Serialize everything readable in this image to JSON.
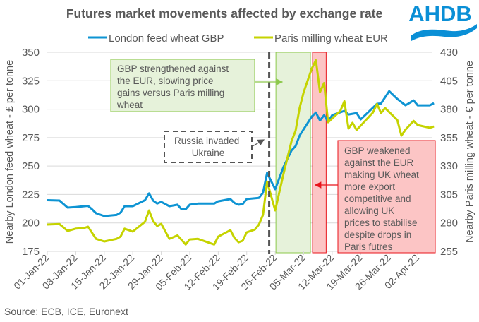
{
  "logo": {
    "text": "AHDB",
    "color": "#0a8fd6"
  },
  "source": "Source: ECB, ICE, Euronext",
  "chart_data": {
    "type": "line",
    "title": "Futures market movements affected by exchange rate",
    "ylabel_left": "Nearby London feed wheat - £ per tonne",
    "ylabel_right": "Nearby Paris milling wheat - € per tonne",
    "ylim_left": [
      175,
      350
    ],
    "ylim_right": [
      255,
      430
    ],
    "yticks_left": [
      175,
      200,
      225,
      250,
      275,
      300,
      325,
      350
    ],
    "yticks_right": [
      255,
      280,
      305,
      330,
      355,
      380,
      405,
      430
    ],
    "xlim": [
      "2022-01-01",
      "2022-04-07"
    ],
    "xticks": [
      "01-Jan-22",
      "08-Jan-22",
      "15-Jan-22",
      "22-Jan-22",
      "29-Jan-22",
      "05-Feb-22",
      "12-Feb-22",
      "19-Feb-22",
      "26-Feb-22",
      "05-Mar-22",
      "12-Mar-22",
      "19-Mar-22",
      "26-Mar-22",
      "02-Apr-22"
    ],
    "grid": true,
    "legend": "top",
    "series": [
      {
        "name": "London feed wheat GBP",
        "axis": "left",
        "color": "#0e94d3",
        "points": [
          [
            "2022-01-01",
            220
          ],
          [
            "2022-01-04",
            219.7
          ],
          [
            "2022-01-06",
            213.5
          ],
          [
            "2022-01-08",
            214
          ],
          [
            "2022-01-11",
            215
          ],
          [
            "2022-01-12",
            212
          ],
          [
            "2022-01-13",
            208.5
          ],
          [
            "2022-01-15",
            206
          ],
          [
            "2022-01-18",
            207
          ],
          [
            "2022-01-19",
            209
          ],
          [
            "2022-01-20",
            214.7
          ],
          [
            "2022-01-22",
            214.7
          ],
          [
            "2022-01-25",
            220
          ],
          [
            "2022-01-26",
            226
          ],
          [
            "2022-01-27",
            219.7
          ],
          [
            "2022-01-28",
            217
          ],
          [
            "2022-01-29",
            218.5
          ],
          [
            "2022-01-31",
            214.7
          ],
          [
            "2022-02-02",
            216
          ],
          [
            "2022-02-03",
            212
          ],
          [
            "2022-02-04",
            212
          ],
          [
            "2022-02-05",
            216
          ],
          [
            "2022-02-07",
            217
          ],
          [
            "2022-02-11",
            217
          ],
          [
            "2022-02-12",
            219
          ],
          [
            "2022-02-15",
            221
          ],
          [
            "2022-02-16",
            217.5
          ],
          [
            "2022-02-17",
            216
          ],
          [
            "2022-02-18",
            216.5
          ],
          [
            "2022-02-19",
            221
          ],
          [
            "2022-02-22",
            222
          ],
          [
            "2022-02-23",
            226.5
          ],
          [
            "2022-02-24",
            244
          ],
          [
            "2022-02-26",
            229.6
          ],
          [
            "2022-02-28",
            249
          ],
          [
            "2022-03-02",
            263.7
          ],
          [
            "2022-03-03",
            267.5
          ],
          [
            "2022-03-04",
            276.7
          ],
          [
            "2022-03-07",
            293.5
          ],
          [
            "2022-03-08",
            297
          ],
          [
            "2022-03-09",
            290
          ],
          [
            "2022-03-10",
            294.7
          ],
          [
            "2022-03-11",
            289
          ],
          [
            "2022-03-12",
            294.7
          ],
          [
            "2022-03-15",
            298.5
          ],
          [
            "2022-03-16",
            295.3
          ],
          [
            "2022-03-18",
            296.6
          ],
          [
            "2022-03-19",
            291
          ],
          [
            "2022-03-23",
            304.7
          ],
          [
            "2022-03-24",
            305
          ],
          [
            "2022-03-26",
            315.8
          ],
          [
            "2022-03-28",
            309
          ],
          [
            "2022-03-30",
            303.4
          ],
          [
            "2022-04-01",
            307.7
          ],
          [
            "2022-04-02",
            303.4
          ],
          [
            "2022-04-05",
            303.4
          ],
          [
            "2022-04-06",
            305.3
          ]
        ]
      },
      {
        "name": "Paris milling wheat EUR",
        "axis": "right",
        "color": "#c5d300",
        "points": [
          [
            "2022-01-01",
            278.6
          ],
          [
            "2022-01-04",
            279
          ],
          [
            "2022-01-06",
            273
          ],
          [
            "2022-01-08",
            275
          ],
          [
            "2022-01-10",
            275.5
          ],
          [
            "2022-01-11",
            276.7
          ],
          [
            "2022-01-13",
            266
          ],
          [
            "2022-01-15",
            263.7
          ],
          [
            "2022-01-18",
            266
          ],
          [
            "2022-01-19",
            268
          ],
          [
            "2022-01-20",
            275
          ],
          [
            "2022-01-22",
            272.4
          ],
          [
            "2022-01-25",
            281
          ],
          [
            "2022-01-26",
            291
          ],
          [
            "2022-01-27",
            281.7
          ],
          [
            "2022-01-28",
            277.3
          ],
          [
            "2022-01-29",
            279.2
          ],
          [
            "2022-01-31",
            266
          ],
          [
            "2022-02-02",
            269
          ],
          [
            "2022-02-04",
            261
          ],
          [
            "2022-02-05",
            265.5
          ],
          [
            "2022-02-07",
            266
          ],
          [
            "2022-02-11",
            261
          ],
          [
            "2022-02-12",
            268
          ],
          [
            "2022-02-15",
            273.6
          ],
          [
            "2022-02-16",
            266.8
          ],
          [
            "2022-02-17",
            263
          ],
          [
            "2022-02-18",
            264.3
          ],
          [
            "2022-02-19",
            271.7
          ],
          [
            "2022-02-21",
            274.2
          ],
          [
            "2022-02-22",
            278.6
          ],
          [
            "2022-02-23",
            287
          ],
          [
            "2022-02-24",
            316.4
          ],
          [
            "2022-02-26",
            291
          ],
          [
            "2022-02-28",
            322.6
          ],
          [
            "2022-03-02",
            351.8
          ],
          [
            "2022-03-03",
            361
          ],
          [
            "2022-03-04",
            381
          ],
          [
            "2022-03-05",
            395
          ],
          [
            "2022-03-07",
            415.7
          ],
          [
            "2022-03-08",
            423
          ],
          [
            "2022-03-09",
            395
          ],
          [
            "2022-03-10",
            403
          ],
          [
            "2022-03-11",
            368.5
          ],
          [
            "2022-03-14",
            378.4
          ],
          [
            "2022-03-15",
            387
          ],
          [
            "2022-03-16",
            363
          ],
          [
            "2022-03-17",
            368
          ],
          [
            "2022-03-18",
            361.7
          ],
          [
            "2022-03-22",
            377
          ],
          [
            "2022-03-23",
            384.6
          ],
          [
            "2022-03-24",
            376.6
          ],
          [
            "2022-03-25",
            381
          ],
          [
            "2022-03-28",
            370.4
          ],
          [
            "2022-03-29",
            356.7
          ],
          [
            "2022-03-30",
            362
          ],
          [
            "2022-04-01",
            369.7
          ],
          [
            "2022-04-02",
            366
          ],
          [
            "2022-04-05",
            363.6
          ],
          [
            "2022-04-06",
            364.8
          ]
        ]
      }
    ],
    "event_line": {
      "date": "2022-02-24",
      "color": "#555555"
    },
    "shaded_periods": [
      {
        "start": "2022-02-26",
        "end": "2022-03-07",
        "fill": "#e6f2da",
        "stroke": "#8cc84b"
      },
      {
        "start": "2022-03-07",
        "end": "2022-03-10",
        "fill": "#fcc5c5",
        "stroke": "#e8141b"
      }
    ],
    "annotations": [
      {
        "text": [
          "GBP strengthened against",
          "the EUR, slowing price",
          "gains versus Paris milling",
          "wheat"
        ]
      },
      {
        "text": [
          "Russia invaded",
          "Ukraine"
        ]
      },
      {
        "text": [
          "GBP weakened",
          "against the EUR",
          "making UK wheat",
          "more export",
          "competitive and",
          "allowing UK",
          "prices to stabilise",
          "despite drops in",
          "Paris futres"
        ]
      }
    ]
  }
}
